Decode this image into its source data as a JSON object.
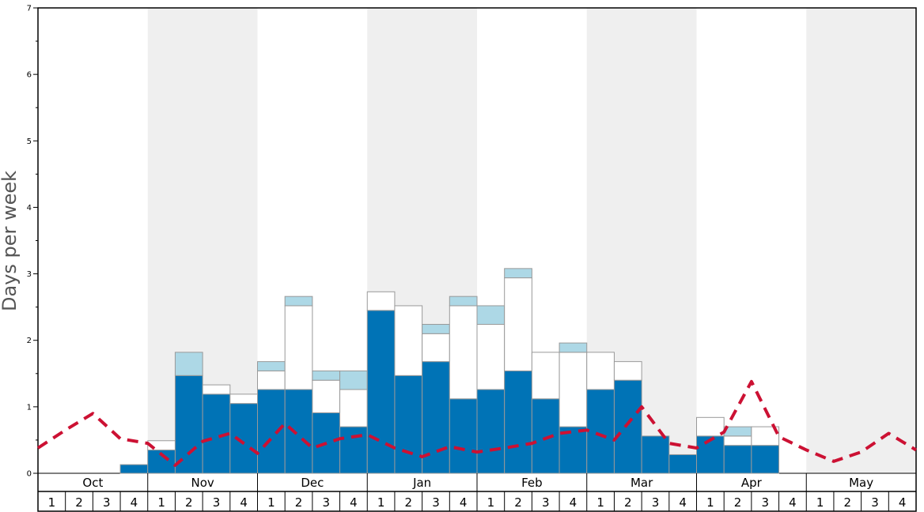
{
  "chart_data": {
    "type": "bar",
    "ylabel": "Days per week",
    "ylim": [
      0,
      7
    ],
    "yticks": [
      "0",
      "1",
      "2",
      "3",
      "4",
      "5",
      "6",
      "7"
    ],
    "months": [
      "Oct",
      "Nov",
      "Dec",
      "Jan",
      "Feb",
      "Mar",
      "Apr",
      "May"
    ],
    "weeks": [
      "1",
      "2",
      "3",
      "4"
    ],
    "shaded_months": [
      "Nov",
      "Jan",
      "Mar",
      "May"
    ],
    "colors": {
      "dark": "#0073b6",
      "white": "#ffffff",
      "light": "#add8e6",
      "line": "#cc1133",
      "shade": "#efefef",
      "bar_edge": "#999999"
    },
    "series": [
      {
        "style": "stacked-bar",
        "values": [
          0,
          0,
          0,
          0.13,
          0.35,
          1.47,
          1.19,
          1.05,
          1.26,
          1.26,
          0.91,
          0.7,
          2.45,
          1.47,
          1.68,
          1.12,
          1.26,
          1.54,
          1.12,
          0.7,
          1.26,
          1.4,
          0.56,
          0.28,
          0.56,
          0.42,
          0.42,
          0,
          0,
          0,
          0,
          0
        ]
      },
      {
        "style": "stacked-bar",
        "values": [
          0,
          0,
          0,
          0,
          0.14,
          0,
          0.14,
          0.14,
          0.28,
          1.26,
          0.49,
          0.56,
          0.28,
          1.05,
          0.42,
          1.4,
          0.98,
          1.4,
          0.7,
          1.12,
          0.56,
          0.28,
          0,
          0,
          0.28,
          0.14,
          0.28,
          0,
          0,
          0,
          0,
          0
        ]
      },
      {
        "style": "stacked-bar",
        "values": [
          0,
          0,
          0,
          0,
          0,
          0.35,
          0,
          0,
          0.14,
          0.14,
          0.14,
          0.28,
          0,
          0,
          0.14,
          0.14,
          0.28,
          0.14,
          0,
          0.14,
          0,
          0,
          0,
          0,
          0,
          0.14,
          0,
          0,
          0,
          0,
          0,
          0
        ]
      },
      {
        "style": "dashed-line",
        "values": [
          0.38,
          0.65,
          0.9,
          0.52,
          0.45,
          0.12,
          0.48,
          0.6,
          0.3,
          0.75,
          0.38,
          0.52,
          0.58,
          0.38,
          0.25,
          0.4,
          0.32,
          0.38,
          0.45,
          0.6,
          0.65,
          0.5,
          1.0,
          0.45,
          0.38,
          0.62,
          1.38,
          0.55,
          0.35,
          0.18,
          0.32,
          0.6,
          0.35
        ]
      }
    ]
  }
}
